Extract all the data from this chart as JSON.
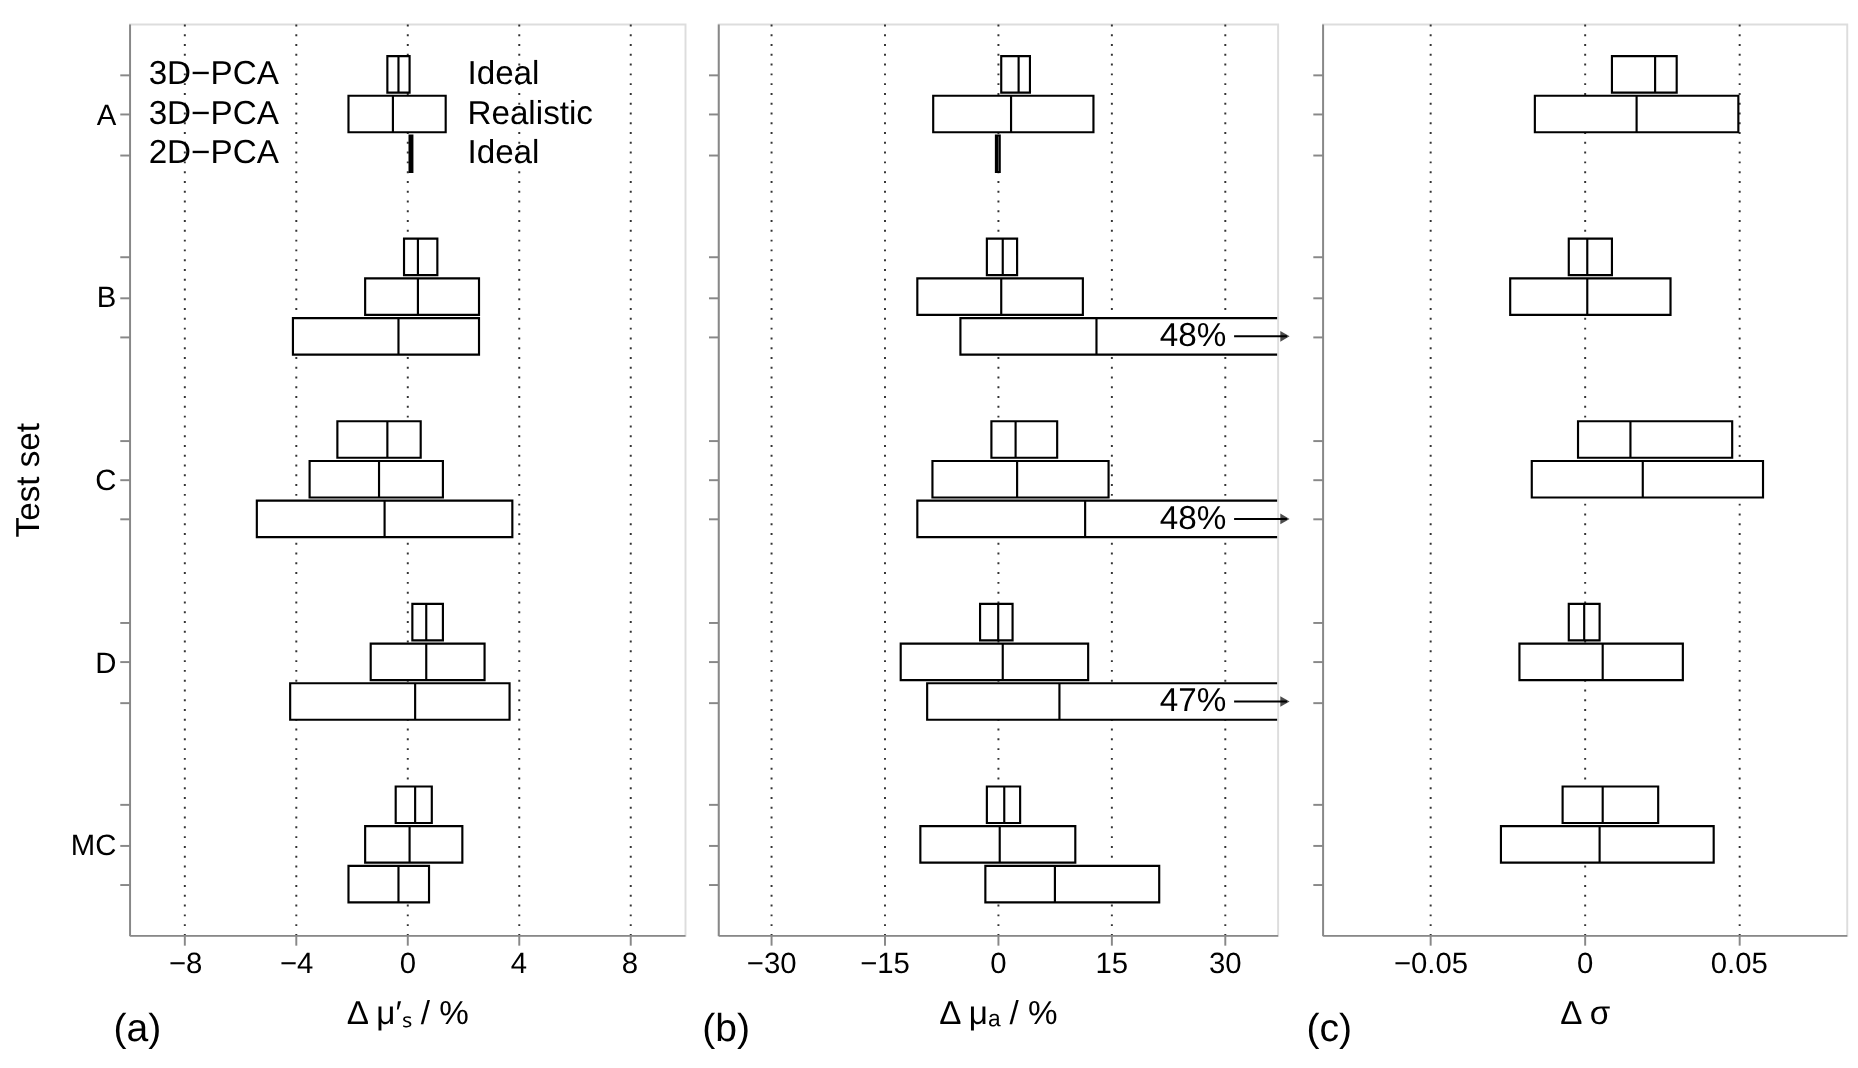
{
  "chart_data": [
    {
      "type": "box",
      "orientation": "horizontal",
      "categories": [
        "A",
        "B",
        "C",
        "D",
        "MC"
      ],
      "xlim": [
        -10,
        10
      ],
      "xticks": [
        {
          "value": -8,
          "label": "−8"
        },
        {
          "value": -4,
          "label": "−4"
        },
        0,
        4,
        8
      ],
      "xlabel": "Δ μ′ₛ / %",
      "ylabel": "Test set",
      "grid": "x",
      "annotations": [
        "3D−PCA",
        "3D−PCA",
        "2D−PCA",
        "(a)"
      ],
      "series": [
        {
          "name": "Ideal",
          "color": "#000000",
          "boxes": [
            {
              "low": -0.7,
              "q1": -0.7,
              "median": -0.3,
              "q3": 0.1,
              "high": 0.1
            },
            {
              "low": -0.1,
              "q1": -0.1,
              "median": 0.4,
              "q3": 1.1,
              "high": 1.1
            },
            {
              "low": -2.5,
              "q1": -2.5,
              "median": -0.7,
              "q3": 0.5,
              "high": 0.5
            },
            {
              "low": 0.2,
              "q1": 0.2,
              "median": 0.7,
              "q3": 1.3,
              "high": 1.3
            },
            {
              "low": -0.4,
              "q1": -0.4,
              "median": 0.3,
              "q3": 0.9,
              "high": 0.9
            }
          ]
        },
        {
          "name": "Realistic",
          "color": "#000000",
          "boxes": [
            {
              "low": -2.1,
              "q1": -2.1,
              "median": -0.5,
              "q3": 1.4,
              "high": 1.4
            },
            {
              "low": -1.5,
              "q1": -1.5,
              "median": 0.4,
              "q3": 2.6,
              "high": 2.6
            },
            {
              "low": -3.5,
              "q1": -3.5,
              "median": -1.0,
              "q3": 1.3,
              "high": 1.3
            },
            {
              "low": -1.3,
              "q1": -1.3,
              "median": 0.7,
              "q3": 2.8,
              "high": 2.8
            },
            {
              "low": -1.5,
              "q1": -1.5,
              "median": 0.1,
              "q3": 2.0,
              "high": 2.0
            }
          ]
        },
        {
          "name": "Ideal",
          "color": "#000000",
          "boxes": [
            {
              "low": 0.1,
              "q1": 0.1,
              "median": 0.15,
              "q3": 0.2,
              "high": 0.2
            },
            {
              "low": -4.1,
              "q1": -4.1,
              "median": -0.3,
              "q3": 2.6,
              "high": 2.6
            },
            {
              "low": -5.4,
              "q1": -5.4,
              "median": -0.8,
              "q3": 3.8,
              "high": 3.8
            },
            {
              "low": -4.2,
              "q1": -4.2,
              "median": 0.3,
              "q3": 3.7,
              "high": 3.7
            },
            {
              "low": -2.1,
              "q1": -2.1,
              "median": -0.3,
              "q3": 0.8,
              "high": 0.8
            }
          ]
        }
      ]
    },
    {
      "type": "box",
      "orientation": "horizontal",
      "categories": [
        null,
        null,
        null,
        null,
        null
      ],
      "xlim": [
        -37,
        37
      ],
      "xticks": [
        {
          "value": -30,
          "label": "−30"
        },
        {
          "value": -15,
          "label": "−15"
        },
        0,
        15,
        30
      ],
      "xlabel": "Δ μₐ / %",
      "grid": "x",
      "tick_labels": "x",
      "annotations": [
        "48%",
        "48%",
        "47%",
        "(b)"
      ],
      "series": [
        {
          "color": "#000000",
          "boxes": [
            {
              "low": 0.5,
              "q1": 0.5,
              "median": 2.8,
              "q3": 4.3,
              "high": 4.3
            },
            {
              "low": -1.4,
              "q1": -1.4,
              "median": 0.7,
              "q3": 2.6,
              "high": 2.6
            },
            {
              "low": -0.8,
              "q1": -0.8,
              "median": 2.4,
              "q3": 7.9,
              "high": 7.9
            },
            {
              "low": -2.3,
              "q1": -2.3,
              "median": 0.1,
              "q3": 2.0,
              "high": 2.0
            },
            {
              "low": -1.4,
              "q1": -1.4,
              "median": 0.9,
              "q3": 3.0,
              "high": 3.0
            }
          ]
        },
        {
          "color": "#000000",
          "boxes": [
            {
              "low": -8.5,
              "q1": -8.5,
              "median": 1.8,
              "q3": 12.7,
              "high": 12.7
            },
            {
              "low": -10.6,
              "q1": -10.6,
              "median": 0.5,
              "q3": 11.3,
              "high": 11.3
            },
            {
              "low": -8.6,
              "q1": -8.6,
              "median": 2.6,
              "q3": 14.7,
              "high": 14.7
            },
            {
              "low": -12.8,
              "q1": -12.8,
              "median": 0.7,
              "q3": 12.0,
              "high": 12.0
            },
            {
              "low": -10.2,
              "q1": -10.2,
              "median": 0.3,
              "q3": 10.3,
              "high": 10.3
            }
          ]
        },
        {
          "color": "#000000",
          "boxes": [
            {
              "low": -0.2,
              "q1": -0.2,
              "median": 0.0,
              "q3": 0.3,
              "high": 0.3
            },
            {
              "low": -4.9,
              "q1": -4.9,
              "median": 13.1,
              "q3": 48,
              "high": 48
            },
            {
              "low": -10.6,
              "q1": -10.6,
              "median": 11.6,
              "q3": 48,
              "high": 48
            },
            {
              "low": -9.3,
              "q1": -9.3,
              "median": 8.2,
              "q3": 47,
              "high": 47
            },
            {
              "low": -1.6,
              "q1": -1.6,
              "median": 7.6,
              "q3": 21.4,
              "high": 21.4
            }
          ]
        }
      ]
    },
    {
      "type": "box",
      "orientation": "horizontal",
      "categories": [
        null,
        null,
        null,
        null,
        null
      ],
      "xlim": [
        -0.085,
        0.085
      ],
      "xticks": [
        {
          "value": -0.05,
          "label": "−0.05"
        },
        {
          "value": 0,
          "label": "0"
        },
        0.05
      ],
      "xlabel": "Δ σ",
      "grid": "x",
      "tick_labels": "x",
      "annotations": [
        "(c)"
      ],
      "series": [
        {
          "color": "#000000",
          "boxes": [
            {
              "low": 0.009,
              "q1": 0.009,
              "median": 0.023,
              "q3": 0.03,
              "high": 0.03
            },
            {
              "low": -0.005,
              "q1": -0.005,
              "median": 0.001,
              "q3": 0.009,
              "high": 0.009
            },
            {
              "low": -0.002,
              "q1": -0.002,
              "median": 0.015,
              "q3": 0.048,
              "high": 0.048
            },
            {
              "low": -0.005,
              "q1": -0.005,
              "median": 0.0,
              "q3": 0.005,
              "high": 0.005
            },
            {
              "low": -0.007,
              "q1": -0.007,
              "median": 0.006,
              "q3": 0.024,
              "high": 0.024
            }
          ]
        },
        {
          "color": "#000000",
          "boxes": [
            {
              "low": -0.016,
              "q1": -0.016,
              "median": 0.017,
              "q3": 0.05,
              "high": 0.05
            },
            {
              "low": -0.024,
              "q1": -0.024,
              "median": 0.001,
              "q3": 0.028,
              "high": 0.028
            },
            {
              "low": -0.017,
              "q1": -0.017,
              "median": 0.019,
              "q3": 0.058,
              "high": 0.058
            },
            {
              "low": -0.021,
              "q1": -0.021,
              "median": 0.006,
              "q3": 0.032,
              "high": 0.032
            },
            {
              "low": -0.027,
              "q1": -0.027,
              "median": 0.005,
              "q3": 0.042,
              "high": 0.042
            }
          ]
        }
      ]
    }
  ]
}
